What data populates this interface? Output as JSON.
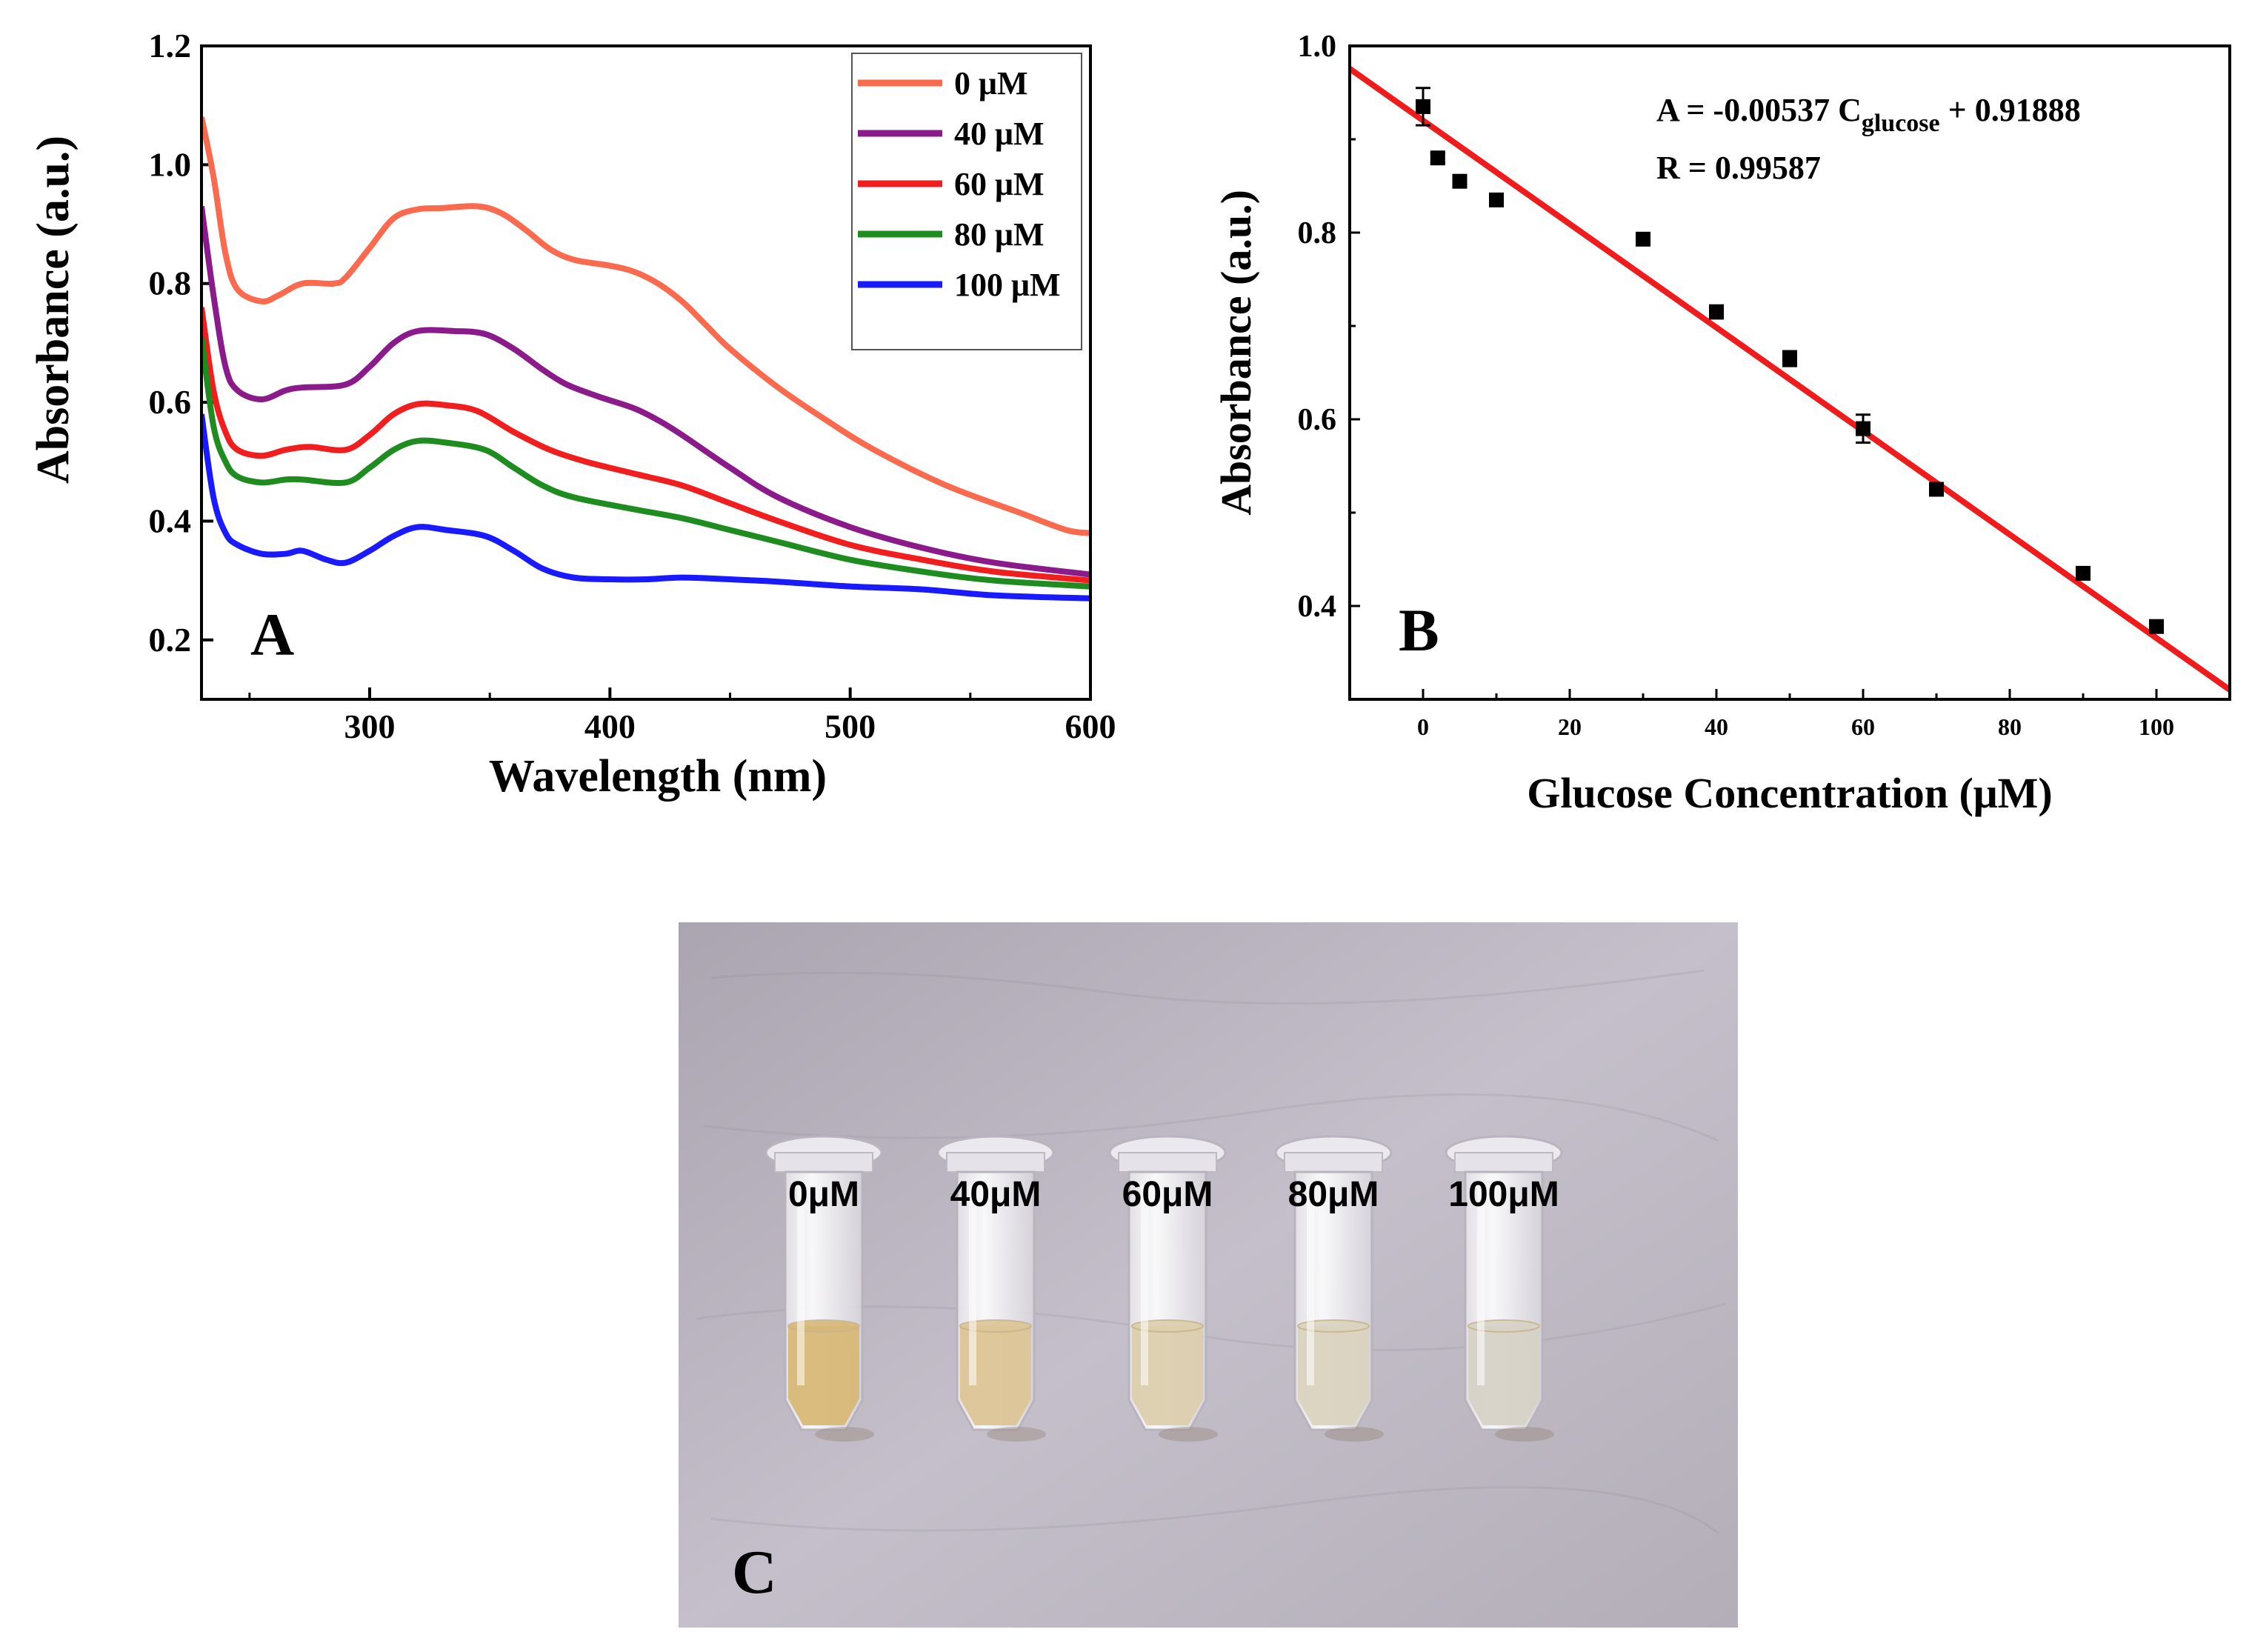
{
  "chart_data": [
    {
      "panel": "A",
      "panel_label": "A",
      "type": "line",
      "xlabel": "Wavelength (nm)",
      "ylabel": "Absorbance (a.u.)",
      "xlim": [
        230,
        600
      ],
      "ylim": [
        0.1,
        1.2
      ],
      "xticks": [
        300,
        400,
        500,
        600
      ],
      "yticks": [
        0.2,
        0.4,
        0.6,
        0.8,
        1.0,
        1.2
      ],
      "ytick_labels": [
        "0.2",
        "0.4",
        "0.6",
        "0.8",
        "1.0",
        "1.2"
      ],
      "legend_position": "top-right",
      "series": [
        {
          "name": "0 μM",
          "color": "#fa6a4e",
          "points": [
            [
              230,
              1.08
            ],
            [
              235,
              0.98
            ],
            [
              240,
              0.85
            ],
            [
              245,
              0.79
            ],
            [
              255,
              0.77
            ],
            [
              262,
              0.78
            ],
            [
              272,
              0.8
            ],
            [
              285,
              0.8
            ],
            [
              290,
              0.81
            ],
            [
              300,
              0.86
            ],
            [
              310,
              0.91
            ],
            [
              320,
              0.925
            ],
            [
              330,
              0.927
            ],
            [
              345,
              0.93
            ],
            [
              355,
              0.918
            ],
            [
              365,
              0.89
            ],
            [
              375,
              0.858
            ],
            [
              385,
              0.84
            ],
            [
              400,
              0.83
            ],
            [
              410,
              0.82
            ],
            [
              420,
              0.8
            ],
            [
              430,
              0.77
            ],
            [
              440,
              0.73
            ],
            [
              450,
              0.69
            ],
            [
              470,
              0.625
            ],
            [
              490,
              0.57
            ],
            [
              510,
              0.52
            ],
            [
              540,
              0.46
            ],
            [
              570,
              0.415
            ],
            [
              590,
              0.385
            ],
            [
              600,
              0.38
            ]
          ]
        },
        {
          "name": "40 μM",
          "color": "#8b1a8b",
          "points": [
            [
              230,
              0.93
            ],
            [
              235,
              0.78
            ],
            [
              240,
              0.66
            ],
            [
              245,
              0.62
            ],
            [
              255,
              0.605
            ],
            [
              265,
              0.62
            ],
            [
              272,
              0.625
            ],
            [
              290,
              0.63
            ],
            [
              300,
              0.66
            ],
            [
              310,
              0.7
            ],
            [
              320,
              0.72
            ],
            [
              335,
              0.72
            ],
            [
              348,
              0.715
            ],
            [
              360,
              0.69
            ],
            [
              372,
              0.655
            ],
            [
              382,
              0.63
            ],
            [
              395,
              0.61
            ],
            [
              410,
              0.59
            ],
            [
              420,
              0.57
            ],
            [
              430,
              0.545
            ],
            [
              450,
              0.49
            ],
            [
              470,
              0.44
            ],
            [
              500,
              0.39
            ],
            [
              530,
              0.355
            ],
            [
              560,
              0.33
            ],
            [
              600,
              0.31
            ]
          ]
        },
        {
          "name": "60 μM",
          "color": "#f01e1e",
          "points": [
            [
              230,
              0.76
            ],
            [
              235,
              0.62
            ],
            [
              240,
              0.55
            ],
            [
              245,
              0.52
            ],
            [
              255,
              0.51
            ],
            [
              265,
              0.52
            ],
            [
              275,
              0.525
            ],
            [
              290,
              0.52
            ],
            [
              300,
              0.545
            ],
            [
              310,
              0.58
            ],
            [
              320,
              0.597
            ],
            [
              332,
              0.595
            ],
            [
              345,
              0.585
            ],
            [
              360,
              0.55
            ],
            [
              375,
              0.52
            ],
            [
              390,
              0.5
            ],
            [
              410,
              0.48
            ],
            [
              430,
              0.46
            ],
            [
              450,
              0.43
            ],
            [
              470,
              0.4
            ],
            [
              500,
              0.36
            ],
            [
              530,
              0.335
            ],
            [
              560,
              0.315
            ],
            [
              600,
              0.3
            ]
          ]
        },
        {
          "name": "80 μM",
          "color": "#1e8c1e",
          "points": [
            [
              230,
              0.71
            ],
            [
              235,
              0.56
            ],
            [
              240,
              0.5
            ],
            [
              245,
              0.475
            ],
            [
              255,
              0.465
            ],
            [
              265,
              0.47
            ],
            [
              272,
              0.47
            ],
            [
              290,
              0.465
            ],
            [
              300,
              0.49
            ],
            [
              310,
              0.52
            ],
            [
              320,
              0.535
            ],
            [
              332,
              0.532
            ],
            [
              348,
              0.52
            ],
            [
              360,
              0.49
            ],
            [
              372,
              0.46
            ],
            [
              385,
              0.44
            ],
            [
              410,
              0.42
            ],
            [
              430,
              0.405
            ],
            [
              450,
              0.385
            ],
            [
              470,
              0.365
            ],
            [
              500,
              0.335
            ],
            [
              530,
              0.315
            ],
            [
              560,
              0.3
            ],
            [
              600,
              0.29
            ]
          ]
        },
        {
          "name": "100 μM",
          "color": "#1a1aff",
          "points": [
            [
              230,
              0.58
            ],
            [
              235,
              0.44
            ],
            [
              240,
              0.38
            ],
            [
              245,
              0.36
            ],
            [
              255,
              0.345
            ],
            [
              265,
              0.345
            ],
            [
              272,
              0.35
            ],
            [
              282,
              0.335
            ],
            [
              290,
              0.33
            ],
            [
              300,
              0.35
            ],
            [
              310,
              0.375
            ],
            [
              320,
              0.39
            ],
            [
              332,
              0.385
            ],
            [
              348,
              0.375
            ],
            [
              360,
              0.35
            ],
            [
              372,
              0.32
            ],
            [
              385,
              0.305
            ],
            [
              400,
              0.302
            ],
            [
              415,
              0.302
            ],
            [
              430,
              0.305
            ],
            [
              450,
              0.302
            ],
            [
              470,
              0.298
            ],
            [
              500,
              0.29
            ],
            [
              530,
              0.285
            ],
            [
              560,
              0.275
            ],
            [
              600,
              0.27
            ]
          ]
        }
      ]
    },
    {
      "panel": "B",
      "panel_label": "B",
      "type": "scatter",
      "xlabel": "Glucose Concentration (μM)",
      "ylabel": "Absorbance (a.u.)",
      "xlim": [
        -10,
        110
      ],
      "ylim": [
        0.3,
        1.0
      ],
      "xticks": [
        0,
        20,
        40,
        60,
        80,
        100
      ],
      "yticks": [
        0.4,
        0.6,
        0.8,
        1.0
      ],
      "ytick_labels": [
        "0.4",
        "0.6",
        "0.8",
        "1.0"
      ],
      "equation_prefix": "A = -0.00537 C",
      "equation_subscript": "glucose",
      "equation_suffix": " + 0.91888",
      "r_value": "R = 0.99587",
      "fit": {
        "slope": -0.00537,
        "intercept": 0.91888,
        "color": "#ee1c1c"
      },
      "points": [
        {
          "x": 0,
          "y": 0.935,
          "err": 0.02
        },
        {
          "x": 2,
          "y": 0.88,
          "err": 0.005
        },
        {
          "x": 5,
          "y": 0.855,
          "err": 0.005
        },
        {
          "x": 10,
          "y": 0.835,
          "err": 0.005
        },
        {
          "x": 30,
          "y": 0.793,
          "err": 0.005
        },
        {
          "x": 40,
          "y": 0.715,
          "err": 0.007
        },
        {
          "x": 50,
          "y": 0.665,
          "err": 0.008
        },
        {
          "x": 60,
          "y": 0.59,
          "err": 0.015
        },
        {
          "x": 70,
          "y": 0.525,
          "err": 0.004
        },
        {
          "x": 90,
          "y": 0.435,
          "err": 0.004
        },
        {
          "x": 100,
          "y": 0.378,
          "err": 0.004
        }
      ]
    }
  ],
  "photo": {
    "panel_label": "C",
    "tubes": [
      {
        "label": "0μM",
        "liquid_color": "#d8b878"
      },
      {
        "label": "40μM",
        "liquid_color": "#dcc596"
      },
      {
        "label": "60μM",
        "liquid_color": "#dccfae"
      },
      {
        "label": "80μM",
        "liquid_color": "#dad3bf"
      },
      {
        "label": "100μM",
        "liquid_color": "#d6d2c6"
      }
    ]
  }
}
